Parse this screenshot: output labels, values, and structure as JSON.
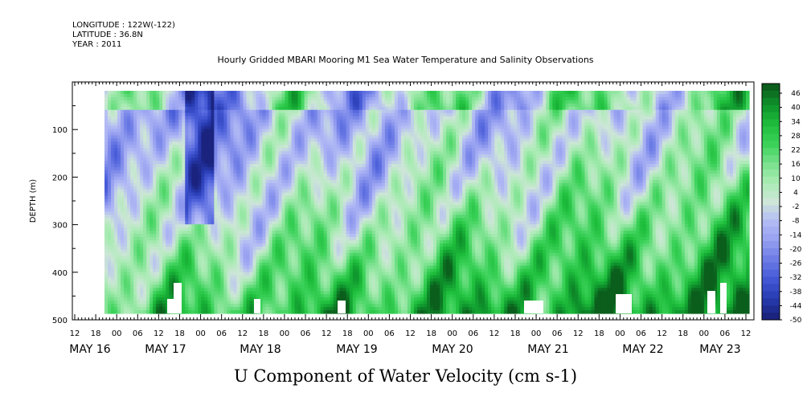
{
  "header": {
    "longitude": "LONGITUDE : 122W(-122)",
    "latitude": "LATITUDE : 36.8N",
    "year": "YEAR : 2011"
  },
  "title": "Hourly Gridded MBARI Mooring M1 Sea Water Temperature and Salinity Observations",
  "bottom_title": "U Component of Water Velocity (cm s-1)",
  "chart_data": {
    "type": "heatmap",
    "ylabel": "DEPTH (m)",
    "ylim": [
      500,
      0
    ],
    "y_inverted": true,
    "y_ticks": [
      100,
      200,
      300,
      400,
      500
    ],
    "x_range_hours": [
      "MAY 16 12:00",
      "MAY 23 14:00"
    ],
    "x_tick_labels": [
      "12",
      "18",
      "00",
      "06",
      "12",
      "18",
      "00",
      "06",
      "12",
      "18",
      "00",
      "06",
      "12",
      "18",
      "00",
      "06",
      "12",
      "18",
      "00",
      "06",
      "12",
      "18",
      "00",
      "06",
      "12",
      "18",
      "00",
      "06",
      "12",
      "18",
      "00",
      "06",
      "12"
    ],
    "date_labels": [
      "MAY 16",
      "MAY 17",
      "MAY 18",
      "MAY 19",
      "MAY 20",
      "MAY 21",
      "MAY 22",
      "MAY 23"
    ],
    "colorbar_labels": [
      "46",
      "40",
      "34",
      "28",
      "22",
      "16",
      "10",
      "4",
      "-2",
      "-8",
      "-14",
      "-20",
      "-26",
      "-32",
      "-38",
      "-44",
      "-50"
    ],
    "colorbar_range": [
      -50,
      49
    ],
    "colors": {
      "deep_blue": "#1a237e",
      "mid_blue": "#5c6bd6",
      "light_blue": "#a9b0f0",
      "pale": "#d8f0d8",
      "light_green": "#7ee08a",
      "mid_green": "#22cc44",
      "dark_green": "#0b5e1c"
    },
    "grid": false
  }
}
